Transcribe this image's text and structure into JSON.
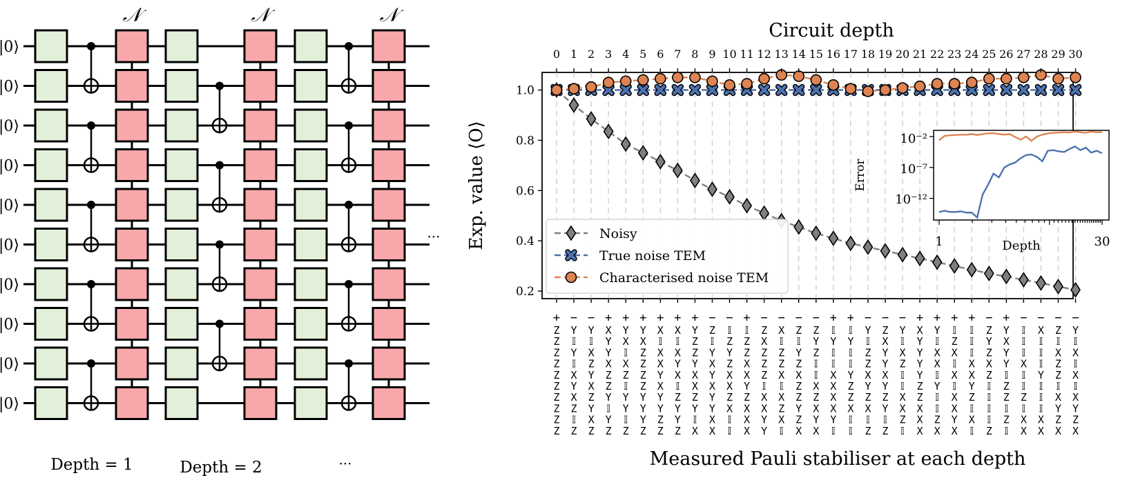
{
  "circuit": {
    "ket_label": "|0⟩",
    "noise_label": "𝒩",
    "row_count": 10,
    "depth_labels": [
      "Depth = 1",
      "Depth = 2",
      "···"
    ],
    "continuation": "···",
    "colors": {
      "single_qubit_gate": "#e2f0d9",
      "noise_channel": "#f8a8aa",
      "line": "#000000"
    }
  },
  "chart_data": {
    "type": "line",
    "top_axis_title": "Circuit depth",
    "x": [
      0,
      1,
      2,
      3,
      4,
      5,
      6,
      7,
      8,
      9,
      10,
      11,
      12,
      13,
      14,
      15,
      16,
      17,
      18,
      19,
      20,
      21,
      22,
      23,
      24,
      25,
      26,
      27,
      28,
      29,
      30
    ],
    "xlabel": "Measured Pauli stabiliser at each depth",
    "ylabel": "Exp. value ⟨O⟩",
    "ylim": [
      0.17,
      1.07
    ],
    "yticks": [
      0.2,
      0.4,
      0.6,
      0.8,
      1.0
    ],
    "ytick_labels": [
      "0.2",
      "0.4",
      "0.6",
      "0.8",
      "1.0"
    ],
    "vertical_dashed_grid": true,
    "legend_position": "lower-left",
    "series": [
      {
        "name": "Noisy",
        "color": "#7f7f7f",
        "marker": "diamond",
        "values": [
          1.0,
          0.94,
          0.885,
          0.835,
          0.785,
          0.75,
          0.715,
          0.68,
          0.64,
          0.605,
          0.575,
          0.54,
          0.51,
          0.48,
          0.455,
          0.43,
          0.41,
          0.39,
          0.375,
          0.36,
          0.345,
          0.33,
          0.315,
          0.3,
          0.285,
          0.27,
          0.258,
          0.245,
          0.232,
          0.218,
          0.205
        ]
      },
      {
        "name": "True noise TEM",
        "color": "#4c72b0",
        "marker": "x",
        "values": [
          1.0,
          1.0,
          1.0,
          1.0,
          1.0,
          1.0,
          1.0,
          1.0,
          1.0,
          1.0,
          1.0,
          1.0,
          1.0,
          1.0,
          1.0,
          1.0,
          1.0,
          1.0,
          1.0,
          1.0,
          1.0,
          1.0,
          1.0,
          1.0,
          1.0,
          1.0,
          1.0,
          1.0,
          1.0,
          1.0,
          1.0
        ]
      },
      {
        "name": "Characterised noise TEM",
        "color": "#dd8452",
        "marker": "circle",
        "values": [
          1.0,
          1.005,
          1.012,
          1.03,
          1.035,
          1.04,
          1.045,
          1.05,
          1.05,
          1.035,
          1.02,
          1.025,
          1.045,
          1.06,
          1.055,
          1.04,
          1.02,
          1.005,
          0.995,
          1.0,
          1.008,
          1.015,
          1.025,
          1.025,
          1.03,
          1.045,
          1.045,
          1.05,
          1.06,
          1.045,
          1.05
        ]
      }
    ],
    "pauli_signs": [
      "+",
      "−",
      "−",
      "+",
      "+",
      "+",
      "+",
      "+",
      "+",
      "−",
      "−",
      "+",
      "−",
      "−",
      "−",
      "−",
      "+",
      "+",
      "−",
      "−",
      "−",
      "+",
      "+",
      "+",
      "+",
      "−",
      "+",
      "−",
      "−",
      "−",
      "−"
    ],
    "pauli_strings": [
      "ZZZZZZZZZZ",
      "YIYIXYXZIZ",
      "YIXZYXZYXZ",
      "XYYXZZYIYZ",
      "YXIXZIYYIZ",
      "YXZZZZYYYZ",
      "XIXXYXYYZZ",
      "XIXYXIZYYZ",
      "YZZYXXZYIX",
      "ZIYXYXYYXX",
      "IZYZXXZXII",
      "IZZXXYZXXX",
      "ZXZZZIXXYY",
      "XIZZXIXZXI",
      "ZIYZXZZYZX",
      "ZYZIIXZXYX",
      "IYIIXXXXYI",
      "IYIIYZZXII",
      "YIZZXYZXIZ",
      "ZXYYXYZYIZ",
      "YIXZIIXXZI",
      "XYYYYZZXXX",
      "YIXXIYIIZX",
      "IZXIXIXXYX",
      "IIIXXYZIXI",
      "ZYZXZIIIIZ",
      "YXYYIZZIZI",
      "IIIXIIZIXX",
      "XIIIYIIIXX",
      "ZIXZZIXYZX",
      "YIXIXIXYZX"
    ],
    "inset": {
      "type": "line",
      "ylabel": "Error",
      "xlabel": "Depth",
      "xtick_labels": [
        "1",
        "30"
      ],
      "ytick_labels": [
        "10⁻²",
        "10⁻⁷",
        "10⁻¹²"
      ],
      "ylim_log10": [
        -15.5,
        -1
      ],
      "series": [
        {
          "name": "Characterised noise TEM",
          "color": "#dd8452",
          "log10_values": [
            -2.6,
            -1.9,
            -1.8,
            -1.75,
            -1.7,
            -1.7,
            -1.6,
            -1.75,
            -1.6,
            -1.5,
            -1.45,
            -1.6,
            -1.7,
            -1.6,
            -2.1,
            -2.5,
            -2.0,
            -2.7,
            -2.0,
            -1.7,
            -1.5,
            -1.4,
            -1.35,
            -1.3,
            -1.35,
            -1.2,
            -1.3,
            -1.4,
            -1.2,
            -1.3,
            -1.3
          ]
        },
        {
          "name": "True noise TEM",
          "color": "#4c72b0",
          "log10_values": [
            -14.2,
            -14.0,
            -14.2,
            -14.2,
            -14.1,
            -14.3,
            -14.3,
            -15.1,
            -11.4,
            -9.8,
            -8.0,
            -8.6,
            -7.0,
            -6.5,
            -6.2,
            -5.5,
            -5.0,
            -4.9,
            -5.3,
            -6.0,
            -4.3,
            -4.2,
            -4.4,
            -4.5,
            -4.0,
            -3.6,
            -4.2,
            -3.8,
            -4.6,
            -4.3,
            -4.7
          ]
        }
      ]
    }
  }
}
